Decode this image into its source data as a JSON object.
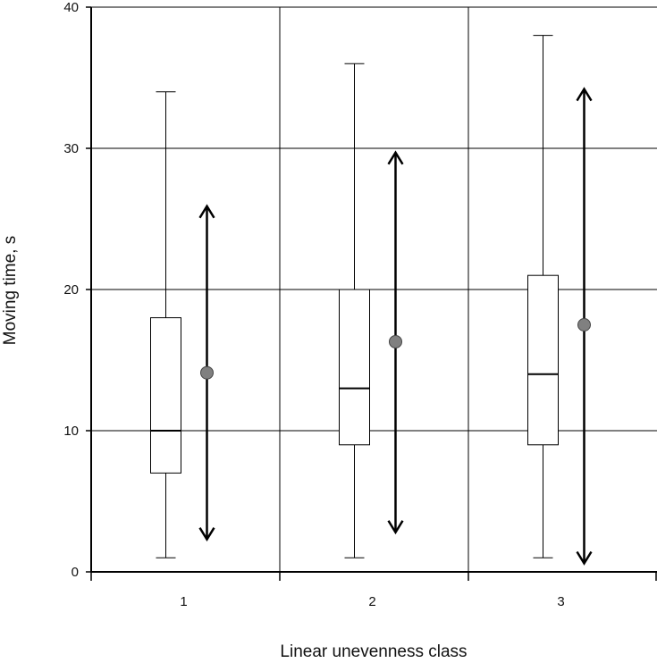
{
  "chart_data": {
    "type": "box",
    "xlabel": "Linear unevenness class",
    "ylabel": "Moving time, s",
    "ylim": [
      0,
      40
    ],
    "yticks": [
      0,
      10,
      20,
      30,
      40
    ],
    "categories": [
      "1",
      "2",
      "3"
    ],
    "grid": true,
    "boxes": [
      {
        "category": "1",
        "whisker_low": 1,
        "q1": 7,
        "median": 10,
        "q3": 18,
        "whisker_high": 34
      },
      {
        "category": "2",
        "whisker_low": 1,
        "q1": 9,
        "median": 13,
        "q3": 20,
        "whisker_high": 36
      },
      {
        "category": "3",
        "whisker_low": 1,
        "q1": 9,
        "median": 14,
        "q3": 21,
        "whisker_high": 38
      }
    ],
    "mean_range": [
      {
        "category": "1",
        "mean": 14.1,
        "low": 2.3,
        "high": 25.9
      },
      {
        "category": "2",
        "mean": 16.3,
        "low": 2.8,
        "high": 29.7
      },
      {
        "category": "3",
        "mean": 17.5,
        "low": 0.6,
        "high": 34.2
      }
    ],
    "colors": {
      "grid": "#000000",
      "box_fill": "#ffffff",
      "mean_marker": "#808080"
    }
  }
}
